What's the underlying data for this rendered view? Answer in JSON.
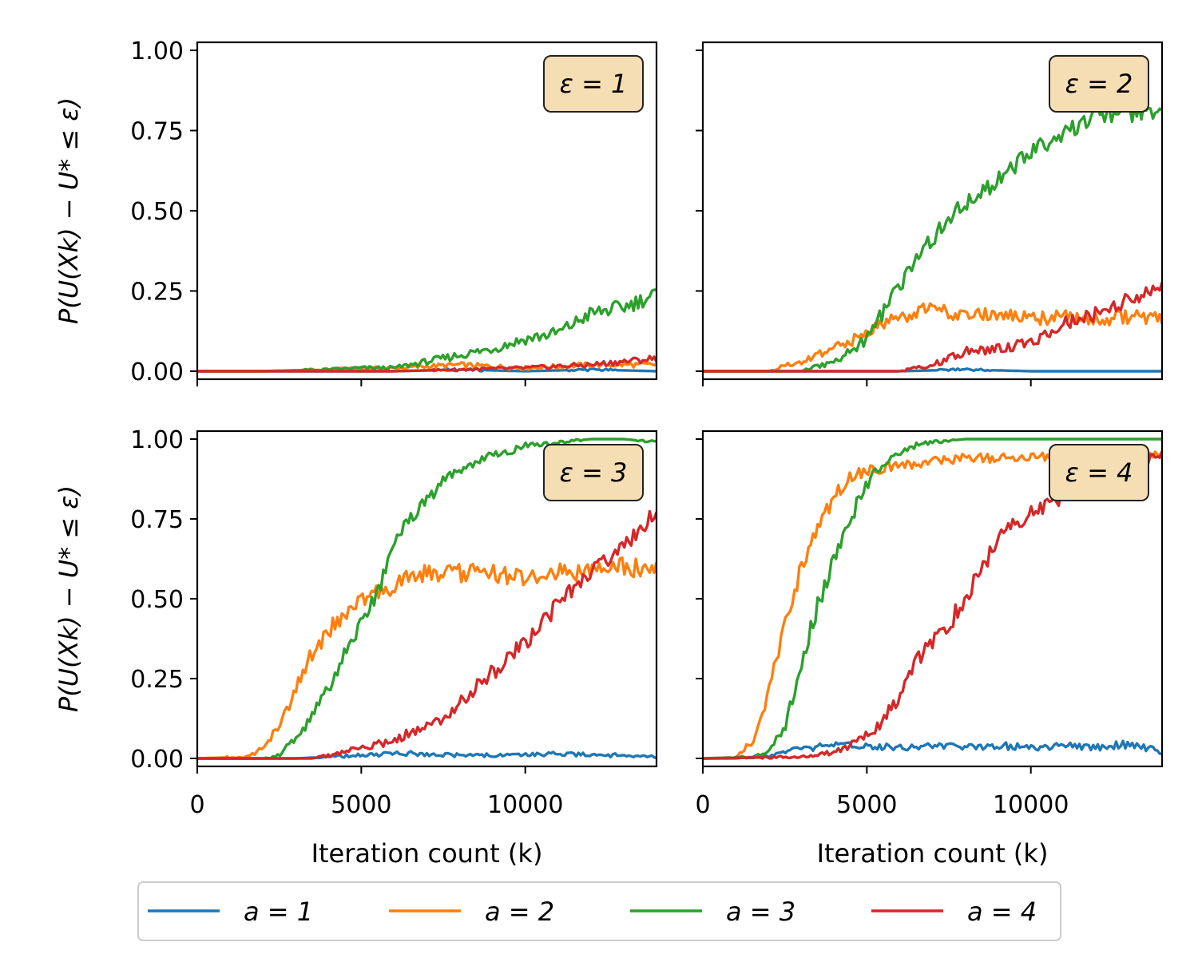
{
  "chart_data": [
    {
      "type": "line",
      "panel_label": "ε = 1",
      "xlabel": "",
      "ylabel": "P(U(Xk) − U* ≤ ε)",
      "xlim": [
        0,
        14000
      ],
      "ylim": [
        -0.025,
        1.025
      ],
      "yticks": [
        "0.00",
        "0.25",
        "0.50",
        "0.75",
        "1.00"
      ],
      "xticks": [],
      "series": [
        {
          "name": "a = 1",
          "x": [
            0,
            2000,
            4000,
            6000,
            8000,
            10000,
            12000,
            14000
          ],
          "values": [
            0,
            0,
            0,
            0,
            0.005,
            0,
            0.005,
            0
          ]
        },
        {
          "name": "a = 2",
          "x": [
            0,
            2000,
            4000,
            6000,
            8000,
            10000,
            12000,
            14000
          ],
          "values": [
            0,
            0,
            0.005,
            0.01,
            0.02,
            0.01,
            0.02,
            0.02
          ]
        },
        {
          "name": "a = 3",
          "x": [
            0,
            2000,
            4000,
            5000,
            6000,
            7000,
            8000,
            9000,
            10000,
            11000,
            12000,
            13000,
            14000
          ],
          "values": [
            0,
            0,
            0.005,
            0.01,
            0.01,
            0.03,
            0.05,
            0.07,
            0.1,
            0.12,
            0.18,
            0.2,
            0.24
          ]
        },
        {
          "name": "a = 4",
          "x": [
            0,
            2000,
            4000,
            6000,
            8000,
            10000,
            12000,
            14000
          ],
          "values": [
            0,
            0,
            0,
            0,
            0.005,
            0.01,
            0.02,
            0.04
          ]
        }
      ]
    },
    {
      "type": "line",
      "panel_label": "ε = 2",
      "xlabel": "",
      "ylabel": "",
      "xlim": [
        0,
        14000
      ],
      "ylim": [
        -0.025,
        1.025
      ],
      "yticks": [],
      "xticks": [],
      "series": [
        {
          "name": "a = 1",
          "x": [
            0,
            4000,
            6000,
            8000,
            10000,
            12000,
            14000
          ],
          "values": [
            0,
            0,
            0,
            0.005,
            0,
            0,
            0
          ]
        },
        {
          "name": "a = 2",
          "x": [
            0,
            2000,
            3000,
            4000,
            5000,
            6000,
            7000,
            8000,
            9000,
            10000,
            11000,
            12000,
            13000,
            14000
          ],
          "values": [
            0,
            0,
            0.03,
            0.07,
            0.12,
            0.17,
            0.2,
            0.17,
            0.18,
            0.16,
            0.17,
            0.16,
            0.17,
            0.16
          ]
        },
        {
          "name": "a = 3",
          "x": [
            0,
            3000,
            4000,
            5000,
            6000,
            7000,
            8000,
            9000,
            10000,
            11000,
            12000,
            13000,
            14000
          ],
          "values": [
            0,
            0,
            0.03,
            0.1,
            0.27,
            0.42,
            0.52,
            0.6,
            0.68,
            0.74,
            0.8,
            0.8,
            0.81
          ]
        },
        {
          "name": "a = 4",
          "x": [
            0,
            6000,
            7000,
            8000,
            9000,
            10000,
            11000,
            12000,
            13000,
            14000
          ],
          "values": [
            0,
            0,
            0.02,
            0.06,
            0.07,
            0.09,
            0.15,
            0.18,
            0.22,
            0.26
          ]
        }
      ]
    },
    {
      "type": "line",
      "panel_label": "ε = 3",
      "xlabel": "Iteration count (k)",
      "ylabel": "P(U(Xk) − U* ≤ ε)",
      "xlim": [
        0,
        14000
      ],
      "ylim": [
        -0.025,
        1.025
      ],
      "yticks": [
        "0.00",
        "0.25",
        "0.50",
        "0.75",
        "1.00"
      ],
      "xticks": [
        "0",
        "5000",
        "10000"
      ],
      "series": [
        {
          "name": "a = 1",
          "x": [
            0,
            3000,
            4000,
            5000,
            6000,
            7000,
            8000,
            9000,
            10000,
            11000,
            12000,
            13000,
            14000
          ],
          "values": [
            0,
            0,
            0.005,
            0.01,
            0.015,
            0.015,
            0.01,
            0.01,
            0.01,
            0.015,
            0.01,
            0.01,
            0.005
          ]
        },
        {
          "name": "a = 2",
          "x": [
            0,
            1500,
            2000,
            2500,
            3000,
            3500,
            4000,
            4500,
            5000,
            5500,
            6000,
            6500,
            7000,
            8000,
            9000,
            10000,
            11000,
            12000,
            13000,
            14000
          ],
          "values": [
            0,
            0.005,
            0.03,
            0.1,
            0.22,
            0.33,
            0.4,
            0.45,
            0.5,
            0.52,
            0.54,
            0.57,
            0.58,
            0.58,
            0.58,
            0.57,
            0.58,
            0.59,
            0.6,
            0.59
          ]
        },
        {
          "name": "a = 3",
          "x": [
            0,
            2000,
            2500,
            3000,
            3500,
            4000,
            4500,
            5000,
            5500,
            6000,
            6500,
            7000,
            7500,
            8000,
            8500,
            9000,
            9500,
            10000,
            11000,
            12000,
            13000,
            14000
          ],
          "values": [
            0,
            0,
            0.01,
            0.06,
            0.13,
            0.22,
            0.33,
            0.44,
            0.52,
            0.68,
            0.76,
            0.81,
            0.87,
            0.9,
            0.93,
            0.95,
            0.96,
            0.98,
            0.99,
            1.0,
            1.0,
            0.99
          ]
        },
        {
          "name": "a = 4",
          "x": [
            0,
            3500,
            4000,
            5000,
            6000,
            7000,
            7500,
            8000,
            8500,
            9000,
            9500,
            10000,
            10500,
            11000,
            11500,
            12000,
            12500,
            13000,
            13500,
            14000
          ],
          "values": [
            0,
            0,
            0.01,
            0.03,
            0.06,
            0.1,
            0.13,
            0.18,
            0.22,
            0.27,
            0.32,
            0.36,
            0.42,
            0.48,
            0.53,
            0.59,
            0.63,
            0.67,
            0.72,
            0.77
          ]
        }
      ]
    },
    {
      "type": "line",
      "panel_label": "ε = 4",
      "xlabel": "Iteration count (k)",
      "ylabel": "",
      "xlim": [
        0,
        14000
      ],
      "ylim": [
        -0.025,
        1.025
      ],
      "yticks": [],
      "xticks": [
        "0",
        "5000",
        "10000"
      ],
      "series": [
        {
          "name": "a = 1",
          "x": [
            0,
            1000,
            1500,
            2000,
            3000,
            4000,
            5000,
            6000,
            7000,
            8000,
            9000,
            10000,
            11000,
            12000,
            13000,
            14000
          ],
          "values": [
            0,
            0,
            0.005,
            0.01,
            0.03,
            0.04,
            0.04,
            0.035,
            0.04,
            0.035,
            0.04,
            0.035,
            0.04,
            0.035,
            0.045,
            0.02
          ]
        },
        {
          "name": "a = 2",
          "x": [
            0,
            1000,
            1500,
            2000,
            2500,
            3000,
            3500,
            4000,
            4500,
            5000,
            5500,
            6000,
            7000,
            8000,
            9000,
            10000,
            11000,
            12000,
            13000,
            14000
          ],
          "values": [
            0,
            0,
            0.05,
            0.2,
            0.42,
            0.6,
            0.72,
            0.82,
            0.88,
            0.9,
            0.91,
            0.92,
            0.93,
            0.94,
            0.94,
            0.94,
            0.95,
            0.95,
            0.95,
            0.95
          ]
        },
        {
          "name": "a = 3",
          "x": [
            0,
            1500,
            2000,
            2500,
            3000,
            3500,
            4000,
            4500,
            5000,
            5500,
            6000,
            6500,
            7000,
            8000,
            9000,
            10000,
            11000,
            12000,
            13000,
            14000
          ],
          "values": [
            0,
            0.005,
            0.02,
            0.1,
            0.3,
            0.48,
            0.62,
            0.75,
            0.86,
            0.92,
            0.96,
            0.98,
            0.99,
            1.0,
            1.0,
            1.0,
            1.0,
            1.0,
            1.0,
            1.0
          ]
        },
        {
          "name": "a = 4",
          "x": [
            0,
            3000,
            3500,
            4000,
            4500,
            5000,
            5500,
            6000,
            6500,
            7000,
            7500,
            8000,
            8500,
            9000,
            9500,
            10000,
            11000,
            12000,
            13000,
            14000
          ],
          "values": [
            0,
            0.005,
            0.01,
            0.02,
            0.04,
            0.07,
            0.12,
            0.2,
            0.3,
            0.36,
            0.42,
            0.5,
            0.6,
            0.68,
            0.73,
            0.77,
            0.82,
            0.87,
            0.92,
            0.95
          ]
        }
      ]
    }
  ],
  "legend": {
    "position": "bottom-center",
    "items": [
      {
        "label": "a = 1",
        "color": "#1f77b4"
      },
      {
        "label": "a = 2",
        "color": "#ff7f0e"
      },
      {
        "label": "a = 3",
        "color": "#2ca02c"
      },
      {
        "label": "a = 4",
        "color": "#d62728"
      }
    ]
  },
  "colors": {
    "a1": "#1f77b4",
    "a2": "#ff7f0e",
    "a3": "#2ca02c",
    "a4": "#d62728",
    "eps_box_fill": "#f5deb3"
  }
}
